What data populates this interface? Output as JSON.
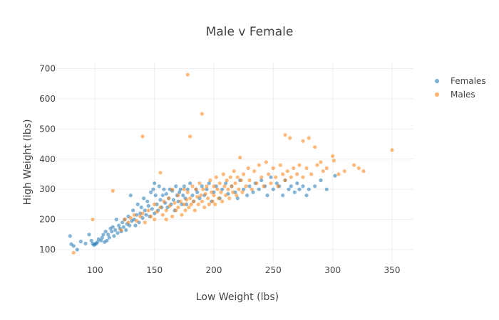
{
  "chart_data": {
    "type": "scatter",
    "title": "Male v Female",
    "xlabel": "Low Weight (lbs)",
    "ylabel": "High Weight (lbs)",
    "xlim": [
      68,
      368
    ],
    "ylim": [
      60,
      720
    ],
    "x_ticks": [
      100,
      150,
      200,
      250,
      300,
      350
    ],
    "y_ticks": [
      100,
      200,
      300,
      400,
      500,
      600,
      700
    ],
    "grid": true,
    "legend_position": "top-right",
    "series": [
      {
        "name": "Females",
        "color": "#1f77b4",
        "points": [
          [
            79,
            145
          ],
          [
            80,
            118
          ],
          [
            82,
            112
          ],
          [
            85,
            100
          ],
          [
            88,
            127
          ],
          [
            92,
            120
          ],
          [
            95,
            150
          ],
          [
            97,
            130
          ],
          [
            98,
            120
          ],
          [
            99,
            115
          ],
          [
            100,
            118
          ],
          [
            101,
            120
          ],
          [
            102,
            125
          ],
          [
            103,
            135
          ],
          [
            105,
            130
          ],
          [
            106,
            140
          ],
          [
            107,
            150
          ],
          [
            108,
            125
          ],
          [
            109,
            160
          ],
          [
            110,
            130
          ],
          [
            111,
            150
          ],
          [
            112,
            140
          ],
          [
            113,
            170
          ],
          [
            114,
            160
          ],
          [
            115,
            175
          ],
          [
            116,
            145
          ],
          [
            117,
            165
          ],
          [
            118,
            200
          ],
          [
            119,
            155
          ],
          [
            120,
            180
          ],
          [
            121,
            170
          ],
          [
            122,
            160
          ],
          [
            123,
            190
          ],
          [
            124,
            175
          ],
          [
            125,
            200
          ],
          [
            126,
            165
          ],
          [
            127,
            185
          ],
          [
            128,
            210
          ],
          [
            129,
            180
          ],
          [
            130,
            280
          ],
          [
            131,
            195
          ],
          [
            132,
            230
          ],
          [
            133,
            200
          ],
          [
            134,
            180
          ],
          [
            135,
            215
          ],
          [
            136,
            250
          ],
          [
            137,
            190
          ],
          [
            138,
            220
          ],
          [
            139,
            240
          ],
          [
            140,
            205
          ],
          [
            141,
            270
          ],
          [
            142,
            230
          ],
          [
            143,
            215
          ],
          [
            144,
            260
          ],
          [
            145,
            245
          ],
          [
            146,
            210
          ],
          [
            147,
            290
          ],
          [
            148,
            235
          ],
          [
            149,
            300
          ],
          [
            150,
            320
          ],
          [
            150,
            220
          ],
          [
            151,
            280
          ],
          [
            152,
            250
          ],
          [
            153,
            230
          ],
          [
            154,
            310
          ],
          [
            155,
            265
          ],
          [
            156,
            240
          ],
          [
            157,
            280
          ],
          [
            158,
            300
          ],
          [
            159,
            255
          ],
          [
            160,
            285
          ],
          [
            161,
            240
          ],
          [
            162,
            270
          ],
          [
            163,
            300
          ],
          [
            164,
            250
          ],
          [
            165,
            295
          ],
          [
            166,
            265
          ],
          [
            167,
            230
          ],
          [
            168,
            310
          ],
          [
            169,
            280
          ],
          [
            170,
            260
          ],
          [
            171,
            290
          ],
          [
            172,
            300
          ],
          [
            173,
            250
          ],
          [
            174,
            280
          ],
          [
            175,
            310
          ],
          [
            176,
            270
          ],
          [
            177,
            250
          ],
          [
            178,
            300
          ],
          [
            180,
            320
          ],
          [
            182,
            280
          ],
          [
            183,
            260
          ],
          [
            185,
            300
          ],
          [
            186,
            290
          ],
          [
            188,
            270
          ],
          [
            190,
            310
          ],
          [
            192,
            280
          ],
          [
            194,
            300
          ],
          [
            196,
            320
          ],
          [
            198,
            260
          ],
          [
            200,
            290
          ],
          [
            202,
            310
          ],
          [
            205,
            270
          ],
          [
            207,
            300
          ],
          [
            210,
            320
          ],
          [
            212,
            285
          ],
          [
            215,
            310
          ],
          [
            218,
            290
          ],
          [
            220,
            270
          ],
          [
            222,
            330
          ],
          [
            225,
            300
          ],
          [
            228,
            280
          ],
          [
            230,
            310
          ],
          [
            233,
            290
          ],
          [
            235,
            320
          ],
          [
            238,
            300
          ],
          [
            240,
            330
          ],
          [
            243,
            310
          ],
          [
            245,
            280
          ],
          [
            248,
            340
          ],
          [
            250,
            300
          ],
          [
            253,
            320
          ],
          [
            255,
            310
          ],
          [
            258,
            280
          ],
          [
            260,
            330
          ],
          [
            263,
            300
          ],
          [
            265,
            310
          ],
          [
            268,
            290
          ],
          [
            270,
            320
          ],
          [
            272,
            300
          ],
          [
            275,
            310
          ],
          [
            278,
            280
          ],
          [
            280,
            300
          ],
          [
            285,
            310
          ],
          [
            290,
            330
          ],
          [
            295,
            300
          ],
          [
            302,
            345
          ]
        ]
      },
      {
        "name": "Males",
        "color": "#ff7f0e",
        "points": [
          [
            82,
            90
          ],
          [
            98,
            200
          ],
          [
            115,
            295
          ],
          [
            122,
            165
          ],
          [
            125,
            200
          ],
          [
            128,
            190
          ],
          [
            130,
            205
          ],
          [
            133,
            215
          ],
          [
            135,
            195
          ],
          [
            138,
            210
          ],
          [
            140,
            475
          ],
          [
            140,
            220
          ],
          [
            142,
            190
          ],
          [
            145,
            230
          ],
          [
            147,
            210
          ],
          [
            150,
            200
          ],
          [
            150,
            250
          ],
          [
            152,
            225
          ],
          [
            155,
            355
          ],
          [
            155,
            240
          ],
          [
            157,
            215
          ],
          [
            158,
            260
          ],
          [
            160,
            230
          ],
          [
            160,
            200
          ],
          [
            162,
            270
          ],
          [
            163,
            245
          ],
          [
            165,
            210
          ],
          [
            165,
            300
          ],
          [
            167,
            255
          ],
          [
            168,
            230
          ],
          [
            170,
            280
          ],
          [
            170,
            240
          ],
          [
            172,
            260
          ],
          [
            173,
            215
          ],
          [
            175,
            300
          ],
          [
            175,
            250
          ],
          [
            176,
            230
          ],
          [
            177,
            265
          ],
          [
            178,
            680
          ],
          [
            178,
            290
          ],
          [
            179,
            240
          ],
          [
            180,
            475
          ],
          [
            180,
            270
          ],
          [
            181,
            250
          ],
          [
            182,
            310
          ],
          [
            183,
            260
          ],
          [
            184,
            230
          ],
          [
            185,
            300
          ],
          [
            186,
            275
          ],
          [
            187,
            250
          ],
          [
            188,
            320
          ],
          [
            189,
            280
          ],
          [
            190,
            550
          ],
          [
            190,
            260
          ],
          [
            191,
            300
          ],
          [
            192,
            240
          ],
          [
            193,
            285
          ],
          [
            194,
            310
          ],
          [
            195,
            270
          ],
          [
            196,
            250
          ],
          [
            197,
            330
          ],
          [
            198,
            290
          ],
          [
            199,
            260
          ],
          [
            200,
            310
          ],
          [
            200,
            280
          ],
          [
            201,
            250
          ],
          [
            202,
            340
          ],
          [
            203,
            300
          ],
          [
            204,
            270
          ],
          [
            205,
            320
          ],
          [
            206,
            290
          ],
          [
            207,
            260
          ],
          [
            208,
            350
          ],
          [
            209,
            310
          ],
          [
            210,
            280
          ],
          [
            211,
            330
          ],
          [
            212,
            300
          ],
          [
            213,
            270
          ],
          [
            214,
            340
          ],
          [
            215,
            310
          ],
          [
            216,
            290
          ],
          [
            217,
            360
          ],
          [
            218,
            320
          ],
          [
            219,
            280
          ],
          [
            220,
            340
          ],
          [
            221,
            300
          ],
          [
            222,
            405
          ],
          [
            223,
            330
          ],
          [
            224,
            290
          ],
          [
            225,
            350
          ],
          [
            227,
            310
          ],
          [
            229,
            370
          ],
          [
            230,
            330
          ],
          [
            232,
            300
          ],
          [
            234,
            360
          ],
          [
            236,
            320
          ],
          [
            238,
            380
          ],
          [
            240,
            340
          ],
          [
            242,
            310
          ],
          [
            244,
            390
          ],
          [
            246,
            350
          ],
          [
            248,
            320
          ],
          [
            250,
            370
          ],
          [
            252,
            340
          ],
          [
            254,
            310
          ],
          [
            256,
            380
          ],
          [
            258,
            350
          ],
          [
            260,
            480
          ],
          [
            260,
            330
          ],
          [
            262,
            360
          ],
          [
            264,
            470
          ],
          [
            265,
            340
          ],
          [
            267,
            370
          ],
          [
            270,
            350
          ],
          [
            272,
            380
          ],
          [
            275,
            460
          ],
          [
            275,
            340
          ],
          [
            278,
            370
          ],
          [
            280,
            470
          ],
          [
            282,
            350
          ],
          [
            285,
            440
          ],
          [
            287,
            380
          ],
          [
            290,
            390
          ],
          [
            292,
            360
          ],
          [
            295,
            370
          ],
          [
            300,
            410
          ],
          [
            301,
            395
          ],
          [
            305,
            350
          ],
          [
            310,
            360
          ],
          [
            318,
            380
          ],
          [
            322,
            370
          ],
          [
            326,
            360
          ],
          [
            350,
            430
          ]
        ]
      }
    ]
  }
}
